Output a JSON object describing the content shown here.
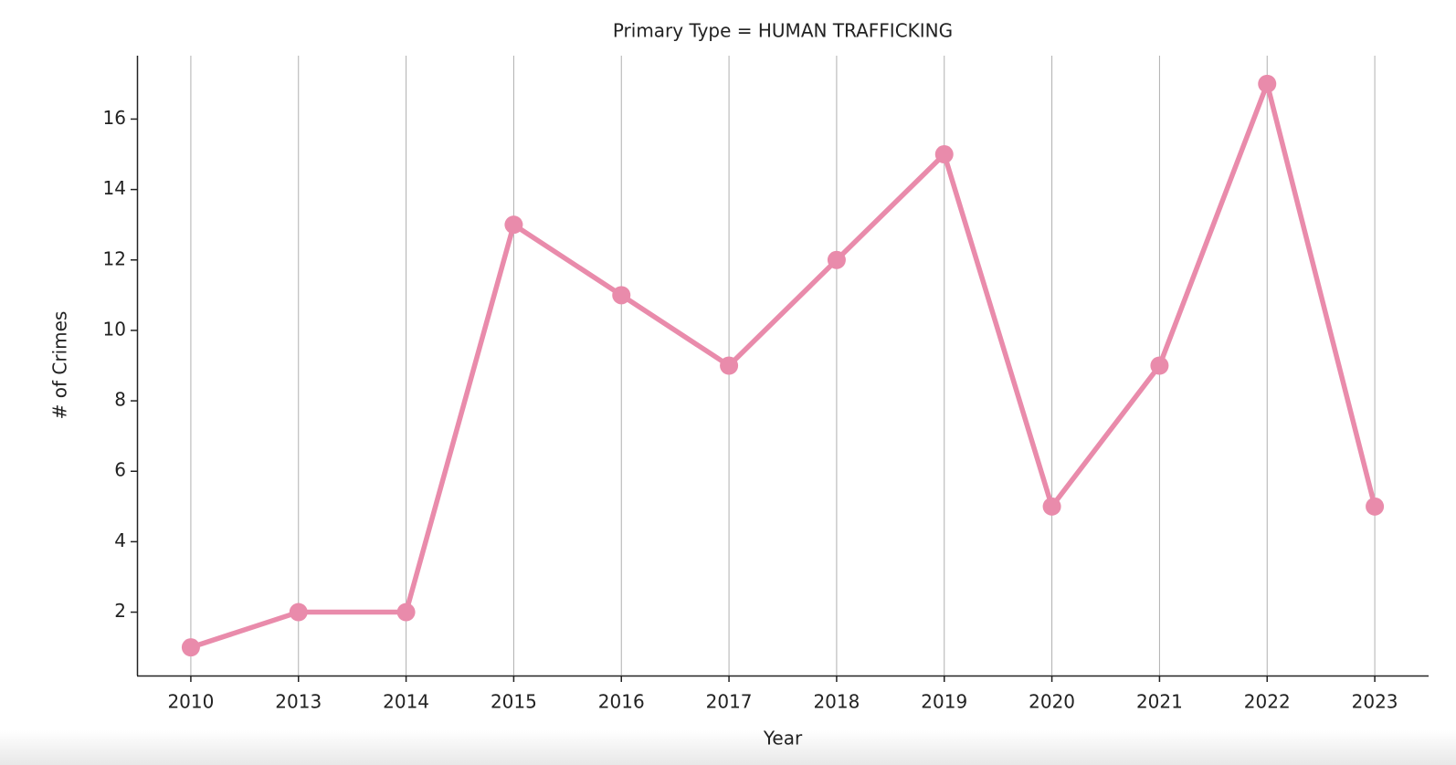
{
  "chart_data": {
    "type": "line",
    "title": "Primary Type = HUMAN TRAFFICKING",
    "x_label": "Year",
    "y_label": "# of Crimes",
    "categories": [
      "2010",
      "2013",
      "2014",
      "2015",
      "2016",
      "2017",
      "2018",
      "2019",
      "2020",
      "2021",
      "2022",
      "2023"
    ],
    "values": [
      1,
      2,
      2,
      13,
      11,
      9,
      12,
      15,
      5,
      9,
      17,
      5
    ],
    "color": "#e98bab",
    "ylim": [
      0.2,
      17.8
    ],
    "yticks": [
      2,
      4,
      6,
      8,
      10,
      12,
      14,
      16
    ],
    "grid": "x"
  }
}
